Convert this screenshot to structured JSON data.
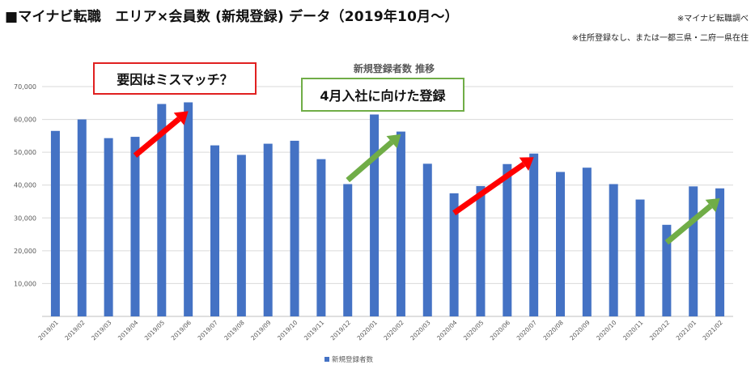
{
  "header": {
    "title": "■マイナビ転職　エリア×会員数 (新規登録) データ（2019年10月～）",
    "source_note": "※マイナビ転職調べ",
    "scope_note": "※住所登録なし、または一都三県・二府一県在住"
  },
  "annotations": {
    "red_callout": "要因はミスマッチ？",
    "green_callout": "4月入社に向けた登録"
  },
  "colors": {
    "bar": "#4472c4",
    "red_arrow": "#ff0000",
    "green_arrow": "#70ad47",
    "grid": "#d9d9d9"
  },
  "chart_data": {
    "type": "bar",
    "title": "新規登録者数 推移",
    "xlabel": "",
    "ylabel": "",
    "ylim": [
      0,
      70000
    ],
    "yticks": [
      "10,000",
      "20,000",
      "30,000",
      "40,000",
      "50,000",
      "60,000",
      "70,000"
    ],
    "grid": true,
    "legend_position": "bottom",
    "categories": [
      "2019/01",
      "2019/02",
      "2019/03",
      "2019/04",
      "2019/05",
      "2019/06",
      "2019/07",
      "2019/08",
      "2019/09",
      "2019/10",
      "2019/11",
      "2019/12",
      "2020/01",
      "2020/02",
      "2020/03",
      "2020/04",
      "2020/05",
      "2020/06",
      "2020/07",
      "2020/08",
      "2020/09",
      "2020/10",
      "2020/11",
      "2020/12",
      "2021/01",
      "2021/02"
    ],
    "series": [
      {
        "name": "新規登録者数",
        "values": [
          56500,
          60000,
          54300,
          54700,
          64700,
          65200,
          52100,
          49200,
          52600,
          53500,
          47900,
          40300,
          61500,
          56300,
          46500,
          37500,
          39700,
          46400,
          49600,
          44000,
          45300,
          40300,
          35600,
          27900,
          39600,
          39000
        ]
      }
    ],
    "trend_arrows": [
      {
        "color": "red",
        "from": [
          "2019/04",
          49000
        ],
        "to": [
          "2019/06",
          62500
        ]
      },
      {
        "color": "green",
        "from": [
          "2019/12",
          41500
        ],
        "to": [
          "2020/02",
          55500
        ]
      },
      {
        "color": "red",
        "from": [
          "2020/04",
          31500
        ],
        "to": [
          "2020/07",
          48500
        ]
      },
      {
        "color": "green",
        "from": [
          "2020/12",
          22500
        ],
        "to": [
          "2021/02",
          36000
        ]
      }
    ]
  }
}
